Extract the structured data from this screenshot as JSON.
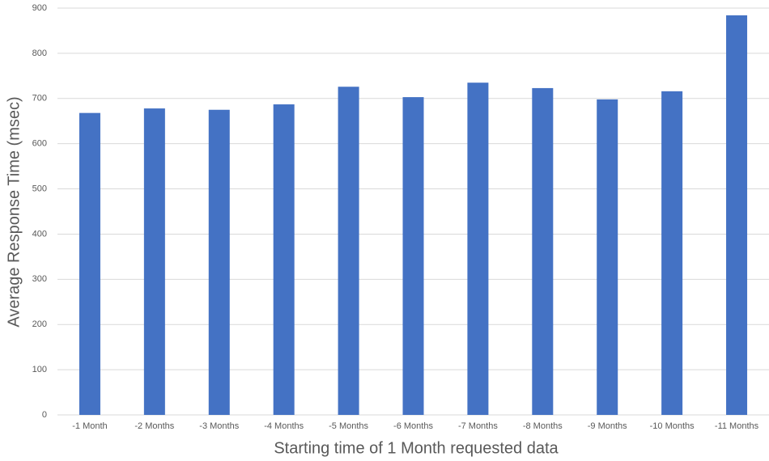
{
  "chart_data": {
    "type": "bar",
    "x_label": "Starting time of 1 Month requested data",
    "y_label": "Average Response Time (msec)",
    "categories": [
      "-1 Month",
      "-2 Months",
      "-3 Months",
      "-4 Months",
      "-5 Months",
      "-6 Months",
      "-7 Months",
      "-8 Months",
      "-9 Months",
      "-10 Months",
      "-11 Months"
    ],
    "values": [
      668,
      678,
      675,
      687,
      726,
      703,
      735,
      723,
      698,
      716,
      884
    ],
    "color": "#4472c4",
    "ylim": [
      0,
      900
    ],
    "yticks": [
      0,
      100,
      200,
      300,
      400,
      500,
      600,
      700,
      800,
      900
    ],
    "grid": true
  }
}
